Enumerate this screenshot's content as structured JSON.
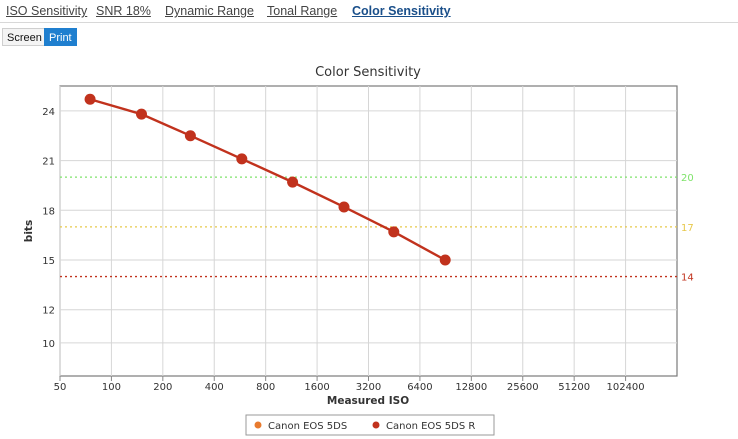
{
  "tabs": [
    {
      "label": "ISO Sensitivity",
      "active": false
    },
    {
      "label": "SNR 18%",
      "active": false
    },
    {
      "label": "Dynamic Range",
      "active": false
    },
    {
      "label": "Tonal Range",
      "active": false
    },
    {
      "label": "Color Sensitivity",
      "active": true
    }
  ],
  "mode_buttons": {
    "screen": "Screen",
    "print": "Print",
    "selected": "print"
  },
  "chart_data": {
    "type": "line",
    "title": "Color Sensitivity",
    "xlabel": "Measured ISO",
    "ylabel": "bits",
    "x_scale": "log2",
    "xlim": [
      50,
      204800
    ],
    "ylim": [
      8,
      25.5
    ],
    "x_ticks": [
      50,
      100,
      200,
      400,
      800,
      1600,
      3200,
      6400,
      12800,
      25600,
      51200,
      102400
    ],
    "y_ticks": [
      10,
      12,
      15,
      18,
      21,
      24
    ],
    "right_reference_lines": [
      {
        "value": 20,
        "label": "20",
        "color": "#7ee36a"
      },
      {
        "value": 17,
        "label": "17",
        "color": "#e7c84a"
      },
      {
        "value": 14,
        "label": "14",
        "color": "#c1321d"
      }
    ],
    "legend_position": "bottom-center",
    "series": [
      {
        "name": "Canon EOS 5DS",
        "color": "#e87a2e",
        "points": [
          [
            1150,
            19.8
          ]
        ]
      },
      {
        "name": "Canon EOS 5DS R",
        "color": "#c1321d",
        "points": [
          [
            75,
            24.7
          ],
          [
            150,
            23.8
          ],
          [
            290,
            22.5
          ],
          [
            580,
            21.1
          ],
          [
            1150,
            19.7
          ],
          [
            2300,
            18.2
          ],
          [
            4500,
            16.7
          ],
          [
            9000,
            15.0
          ]
        ]
      }
    ]
  }
}
